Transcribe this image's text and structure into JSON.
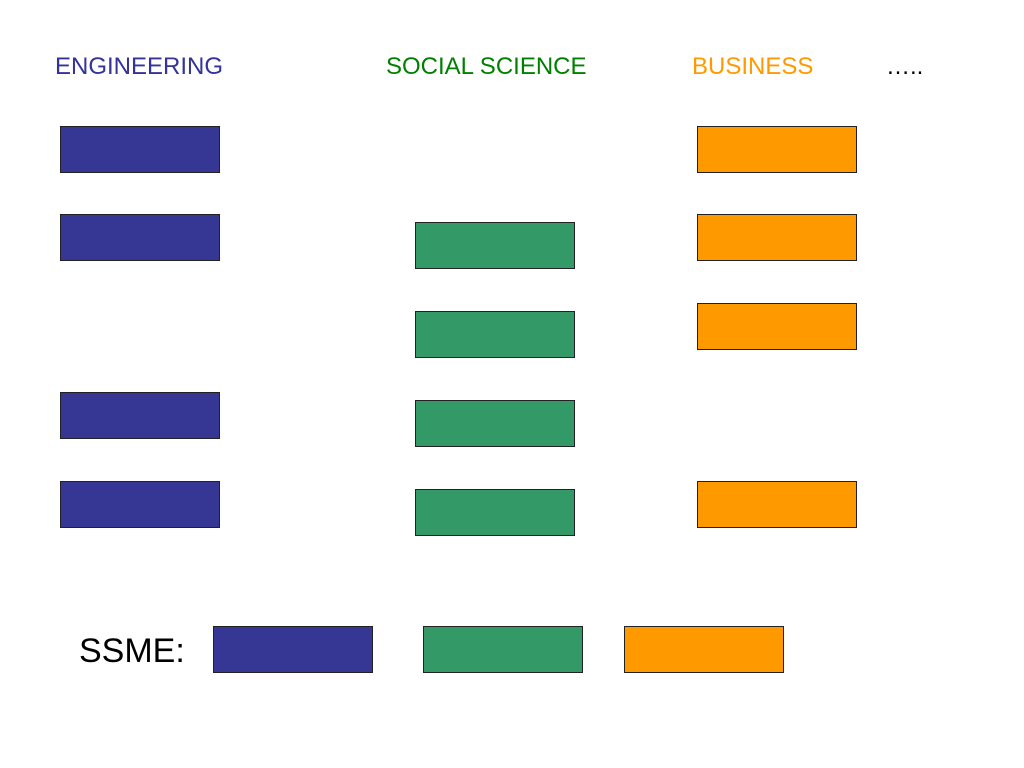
{
  "headers": {
    "engineering": "ENGINEERING",
    "social_science": "SOCIAL SCIENCE",
    "business": "BUSINESS",
    "more": "….."
  },
  "ssme_label": "SSME:",
  "colors": {
    "engineering": "#363795",
    "social_science": "#339966",
    "business": "#FF9900",
    "engineering_text": "#333399",
    "social_science_text": "#008000",
    "business_text": "#FF9900"
  },
  "columns": {
    "engineering_box_count": 4,
    "social_science_box_count": 4,
    "business_box_count": 4
  },
  "ssme_boxes": [
    "engineering",
    "social_science",
    "business"
  ]
}
